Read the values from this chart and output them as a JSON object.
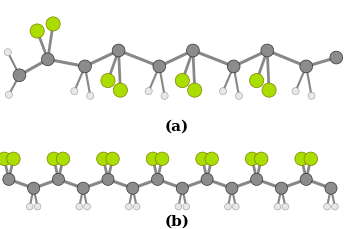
{
  "background": "#ffffff",
  "panel_bg": "#f0f0f0",
  "label_a": "(a)",
  "label_b": "(b)",
  "label_fontsize": 11,
  "label_fontweight": "bold",
  "colors": {
    "C": "#8c8c8c",
    "F": "#aadd00",
    "H": "#e8e8e8"
  },
  "bond_color": "#888888",
  "bond_lw": 2.2,
  "C_r": 0.18,
  "F_r": 0.2,
  "H_r": 0.1
}
